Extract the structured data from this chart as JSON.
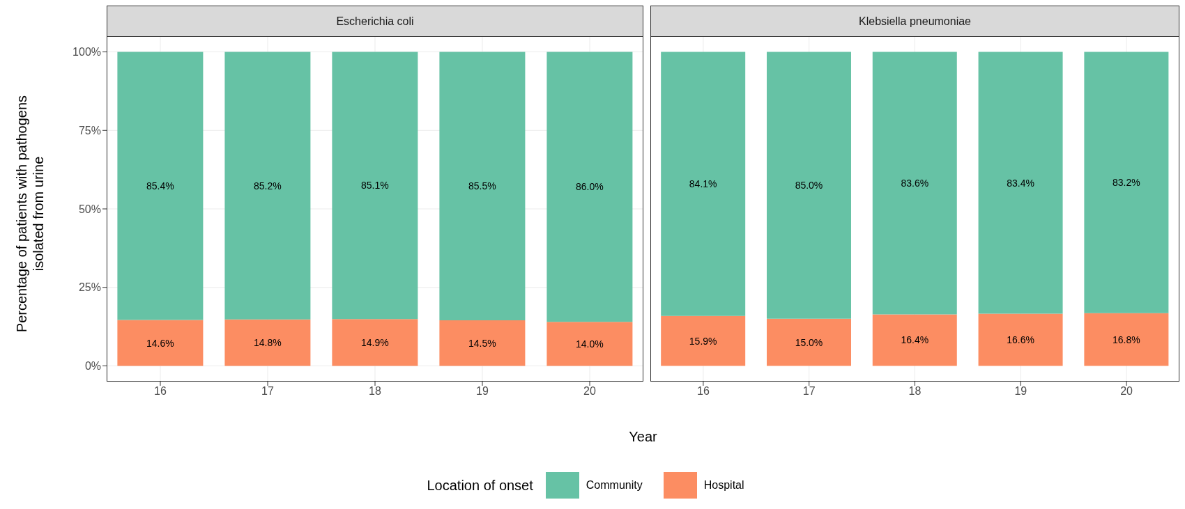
{
  "chart_data": [
    {
      "type": "bar",
      "title": "Escherichia coli",
      "xlabel": "Year",
      "ylabel": "Percentage of patients with pathogens isolated from urine",
      "legend_title": "Location of onset",
      "legend": "bottom",
      "stacked": true,
      "grid": true,
      "categories": [
        "16",
        "17",
        "18",
        "19",
        "20"
      ],
      "ylim": [
        -5,
        105
      ],
      "yticks": [
        {
          "value": 0,
          "label": "0%"
        },
        {
          "value": 25,
          "label": "25%"
        },
        {
          "value": 50,
          "label": "50%"
        },
        {
          "value": 75,
          "label": "75%"
        },
        {
          "value": 100,
          "label": "100%"
        }
      ],
      "series": [
        {
          "name": "Hospital",
          "color": "#fc8d62",
          "values": [
            14.6,
            14.8,
            14.9,
            14.5,
            14.0
          ],
          "value_labels": [
            "14.6%",
            "14.8%",
            "14.9%",
            "14.5%",
            "14.0%"
          ]
        },
        {
          "name": "Community",
          "color": "#66c2a5",
          "values": [
            85.4,
            85.2,
            85.1,
            85.5,
            86.0
          ],
          "value_labels": [
            "85.4%",
            "85.2%",
            "85.1%",
            "85.5%",
            "86.0%"
          ]
        }
      ]
    },
    {
      "type": "bar",
      "title": "Klebsiella pneumoniae",
      "stacked": true,
      "grid": true,
      "tick_labels": "x",
      "categories": [
        "16",
        "17",
        "18",
        "19",
        "20"
      ],
      "ylim": [
        -5,
        105
      ],
      "yticks": [
        {
          "value": 0,
          "label": null
        },
        {
          "value": 25,
          "label": null
        },
        {
          "value": 50,
          "label": null
        },
        {
          "value": 75,
          "label": null
        },
        {
          "value": 100,
          "label": null
        }
      ],
      "series": [
        {
          "color": "#fc8d62",
          "values": [
            15.9,
            15.0,
            16.4,
            16.6,
            16.8
          ],
          "value_labels": [
            "15.9%",
            "15.0%",
            "16.4%",
            "16.6%",
            "16.8%"
          ]
        },
        {
          "color": "#66c2a5",
          "values": [
            84.1,
            85.0,
            83.6,
            83.4,
            83.2
          ],
          "value_labels": [
            "84.1%",
            "85.0%",
            "83.6%",
            "83.4%",
            "83.2%"
          ]
        }
      ]
    }
  ]
}
